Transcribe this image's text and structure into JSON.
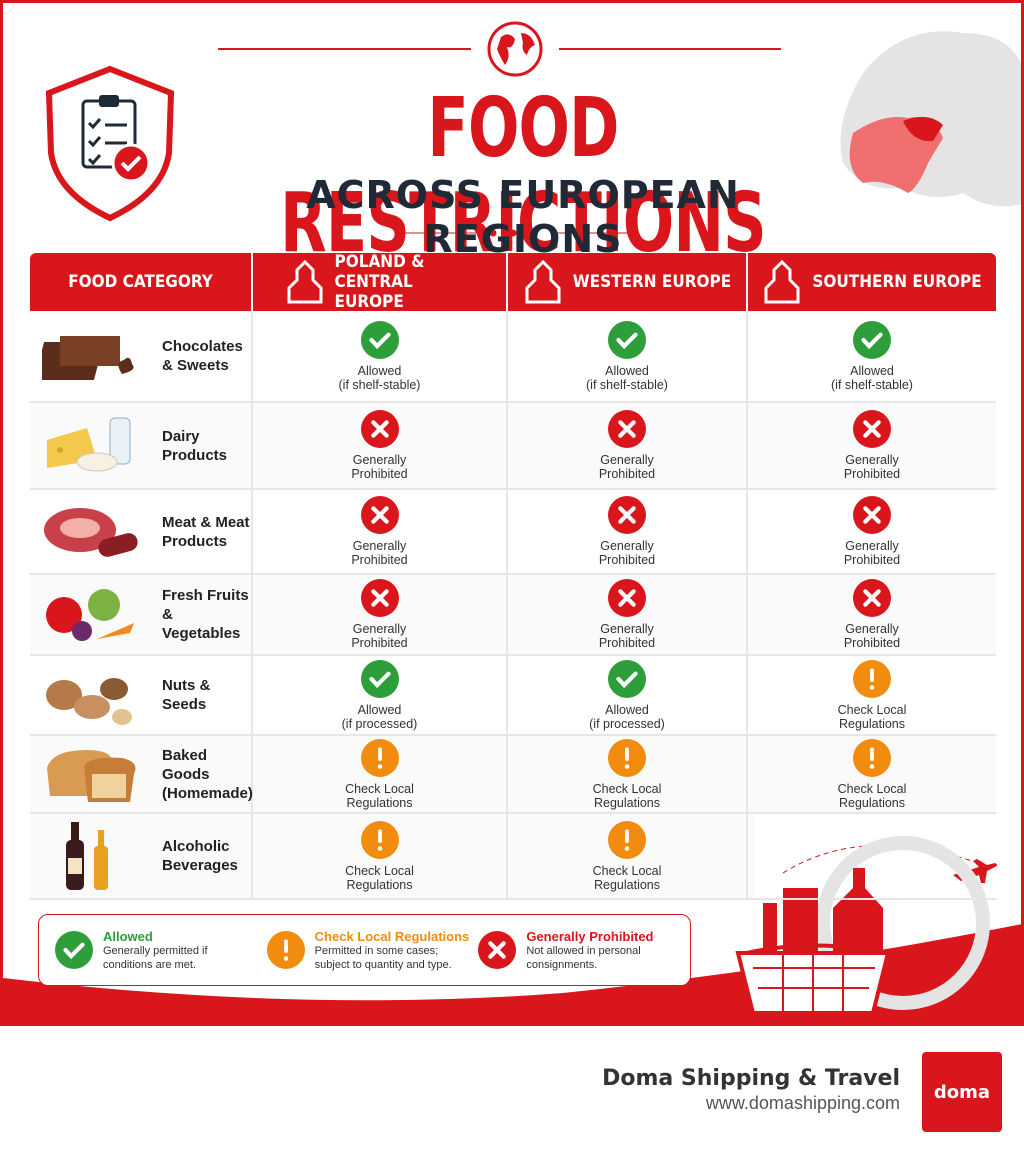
{
  "header": {
    "title": "FOOD RESTRICTIONS",
    "subtitle": "ACROSS EUROPEAN REGIONS"
  },
  "table": {
    "columns": [
      "FOOD CATEGORY",
      "POLAND & CENTRAL EUROPE",
      "WESTERN EUROPE",
      "SOUTHERN EUROPE"
    ],
    "rows": [
      {
        "category": "Chocolates & Sweets",
        "cells": [
          {
            "status": "allowed",
            "lines": [
              "Allowed",
              "(if shelf-stable)"
            ]
          },
          {
            "status": "allowed",
            "lines": [
              "Allowed",
              "(if shelf-stable)"
            ]
          },
          {
            "status": "allowed",
            "lines": [
              "Allowed",
              "(if shelf-stable)"
            ]
          }
        ]
      },
      {
        "category": "Dairy Products",
        "cells": [
          {
            "status": "prohibited",
            "lines": [
              "Generally",
              "Prohibited"
            ]
          },
          {
            "status": "prohibited",
            "lines": [
              "Generally",
              "Prohibited"
            ]
          },
          {
            "status": "prohibited",
            "lines": [
              "Generally",
              "Prohibited"
            ]
          }
        ]
      },
      {
        "category": "Meat & Meat Products",
        "cells": [
          {
            "status": "prohibited",
            "lines": [
              "Generally",
              "Prohibited"
            ]
          },
          {
            "status": "prohibited",
            "lines": [
              "Generally",
              "Prohibited"
            ]
          },
          {
            "status": "prohibited",
            "lines": [
              "Generally",
              "Prohibited"
            ]
          }
        ]
      },
      {
        "category": "Fresh Fruits & Vegetables",
        "cells": [
          {
            "status": "prohibited",
            "lines": [
              "Generally",
              "Prohibited"
            ]
          },
          {
            "status": "prohibited",
            "lines": [
              "Generally",
              "Prohibited"
            ]
          },
          {
            "status": "prohibited",
            "lines": [
              "Generally",
              "Prohibited"
            ]
          }
        ]
      },
      {
        "category": "Nuts & Seeds",
        "cells": [
          {
            "status": "allowed",
            "lines": [
              "Allowed",
              "(if processed)"
            ]
          },
          {
            "status": "allowed",
            "lines": [
              "Allowed",
              "(if processed)"
            ]
          },
          {
            "status": "check",
            "lines": [
              "Check Local",
              "Regulations"
            ]
          }
        ]
      },
      {
        "category": "Baked Goods (Homemade)",
        "cells": [
          {
            "status": "check",
            "lines": [
              "Check Local",
              "Regulations"
            ]
          },
          {
            "status": "check",
            "lines": [
              "Check Local",
              "Regulations"
            ]
          },
          {
            "status": "check",
            "lines": [
              "Check Local",
              "Regulations"
            ]
          }
        ]
      },
      {
        "category": "Alcoholic Beverages",
        "cells": [
          {
            "status": "check",
            "lines": [
              "Check Local",
              "Regulations"
            ]
          },
          {
            "status": "check",
            "lines": [
              "Check Local",
              "Regulations"
            ]
          },
          null
        ]
      }
    ]
  },
  "legend": [
    {
      "status": "allowed",
      "title": "Allowed",
      "text": "Generally permitted if conditions are met."
    },
    {
      "status": "check",
      "title": "Check Local Regulations",
      "text": "Permitted in some cases; subject to quantity and type."
    },
    {
      "status": "prohibited",
      "title": "Generally Prohibited",
      "text": "Not allowed in personal consignments."
    }
  ],
  "footer": {
    "company": "Doma Shipping & Travel",
    "url": "www.domashipping.com",
    "logo": "doma"
  }
}
